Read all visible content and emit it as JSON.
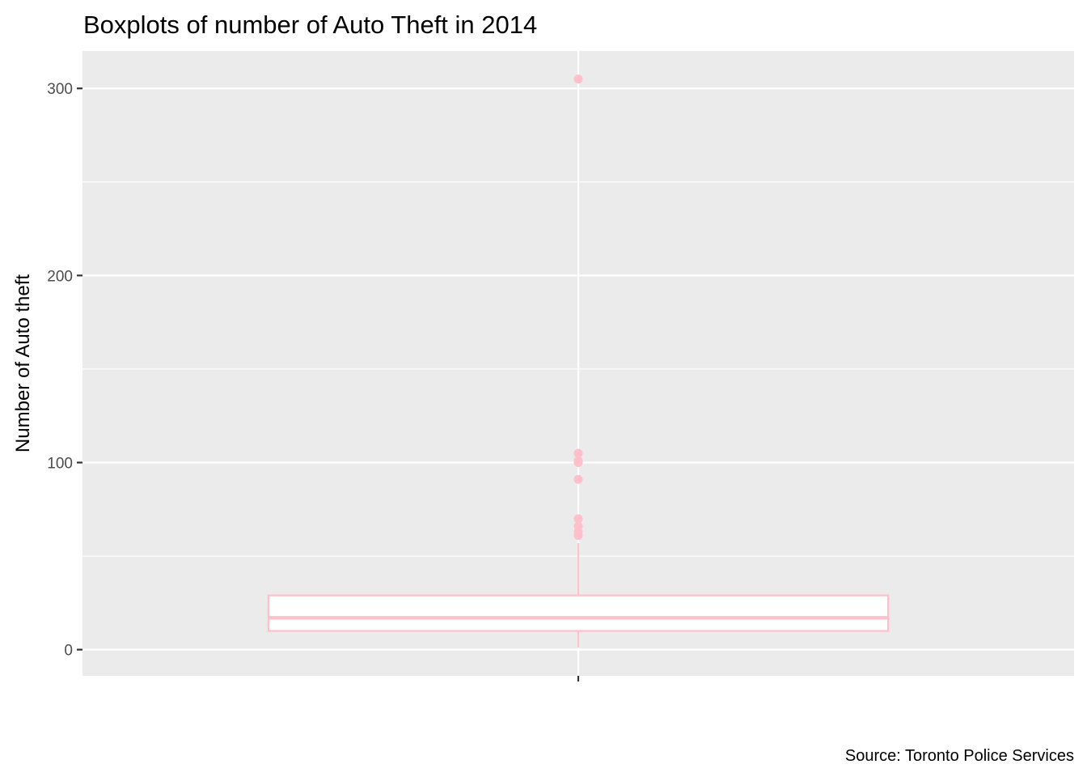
{
  "chart_data": {
    "type": "boxplot",
    "title": "Boxplots of number of Auto Theft in 2014",
    "xlabel": "",
    "ylabel": "Number of Auto theft",
    "caption": "Source: Toronto Police Services",
    "ylim": [
      -14,
      320
    ],
    "y_ticks": [
      0,
      100,
      200,
      300
    ],
    "y_tick_labels": [
      "0",
      "100",
      "200",
      "300"
    ],
    "grid": true,
    "series": [
      {
        "min": 1,
        "q1": 10,
        "median": 17,
        "q3": 29,
        "max": 57,
        "outliers": [
          305,
          105,
          101,
          100,
          91,
          70,
          66,
          63,
          61
        ]
      }
    ],
    "colors": {
      "panel_background": "#ebebeb",
      "grid_major": "#ffffff",
      "box_outline": "#ffc0cb",
      "box_fill": "#ffffff",
      "outlier": "#ffc0cb"
    }
  }
}
